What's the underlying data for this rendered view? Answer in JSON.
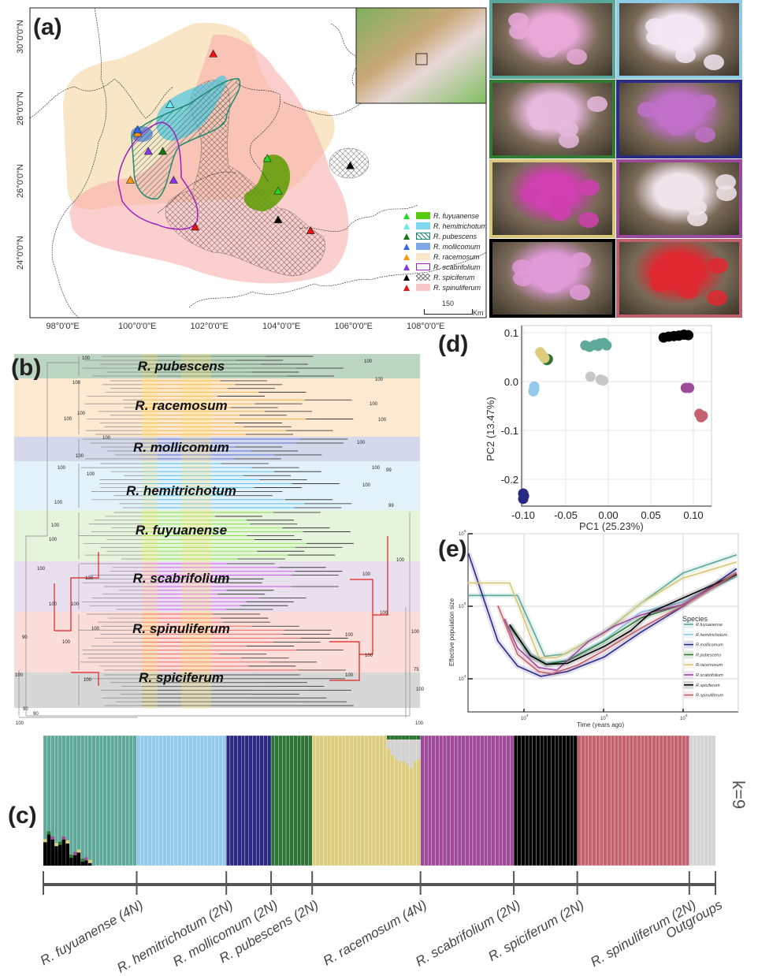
{
  "panels": {
    "a": "(a)",
    "b": "(b)",
    "c": "(c)",
    "d": "(d)",
    "e": "(e)"
  },
  "map": {
    "lon_ticks": [
      "98°0'0\"E",
      "100°0'0\"E",
      "102°0'0\"E",
      "104°0'0\"E",
      "106°0'0\"E",
      "108°0'0\"E"
    ],
    "lat_ticks": [
      "30°0'0\"N",
      "28°0'0\"N",
      "26°0'0\"N",
      "24°0'0\"N"
    ],
    "scale_value": "150",
    "scale_unit": "Km",
    "legend": [
      {
        "label": "R. fuyuanense",
        "marker": "#22dd22",
        "fill": "#55cc11",
        "style": "solid"
      },
      {
        "label": "R. hemitrichotum",
        "marker": "#66eeee",
        "fill": "#7fd8f0",
        "style": "solid"
      },
      {
        "label": "R. pubescens",
        "marker": "#117711",
        "fill": "#1d8a70",
        "style": "hatch"
      },
      {
        "label": "R. mollicomum",
        "marker": "#3366ee",
        "fill": "#7fa8e8",
        "style": "solid"
      },
      {
        "label": "R. racemosum",
        "marker": "#ff9911",
        "fill": "#f8e6c8",
        "style": "solid"
      },
      {
        "label": "R. scabrifolium",
        "marker": "#8833ee",
        "fill": "#a020c0",
        "style": "outline"
      },
      {
        "label": "R. spiciferum",
        "marker": "#000000",
        "fill": "#555555",
        "style": "crosshatch"
      },
      {
        "label": "R. spinuliferum",
        "marker": "#ee1111",
        "fill": "#fbc8c8",
        "style": "solid"
      }
    ],
    "sites": [
      {
        "lon": 102.2,
        "lat": 29.5,
        "color": "#ee1111"
      },
      {
        "lon": 101.0,
        "lat": 28.1,
        "color": "#66eeee"
      },
      {
        "lon": 100.1,
        "lat": 27.3,
        "color": "#ff9911"
      },
      {
        "lon": 100.1,
        "lat": 27.4,
        "color": "#3366ee"
      },
      {
        "lon": 99.9,
        "lat": 26.0,
        "color": "#ff9911"
      },
      {
        "lon": 100.4,
        "lat": 26.8,
        "color": "#8833ee"
      },
      {
        "lon": 100.8,
        "lat": 26.8,
        "color": "#117711"
      },
      {
        "lon": 101.1,
        "lat": 26.0,
        "color": "#8833ee"
      },
      {
        "lon": 101.7,
        "lat": 24.7,
        "color": "#ee1111"
      },
      {
        "lon": 103.7,
        "lat": 26.6,
        "color": "#22dd22"
      },
      {
        "lon": 104.0,
        "lat": 25.7,
        "color": "#22dd22"
      },
      {
        "lon": 104.0,
        "lat": 24.9,
        "color": "#000000"
      },
      {
        "lon": 104.9,
        "lat": 24.6,
        "color": "#ee1111"
      },
      {
        "lon": 106.0,
        "lat": 26.4,
        "color": "#000000"
      }
    ]
  },
  "photos": [
    {
      "border": "#5aa89a",
      "petal": "#e8a8d8"
    },
    {
      "border": "#8ecbe8",
      "petal": "#f2e6f2"
    },
    {
      "border": "#2e7d32",
      "petal": "#e6b8dc"
    },
    {
      "border": "#2a2a8a",
      "petal": "#c070c8"
    },
    {
      "border": "#d8c77a",
      "petal": "#d040b0"
    },
    {
      "border": "#9b4a9b",
      "petal": "#f0e4ea"
    },
    {
      "border": "#000000",
      "petal": "#e09ad8"
    },
    {
      "border": "#c0606a",
      "petal": "#e02830"
    }
  ],
  "tree": {
    "bands": [
      {
        "label": "R. pubescens",
        "color": "#8fb89a",
        "line": "#557755"
      },
      {
        "label": "R. racemosum",
        "color": "#fbd9b0",
        "line": "#f0a020"
      },
      {
        "label": "R. mollicomum",
        "color": "#b8bedc",
        "line": "#3355dd"
      },
      {
        "label": "R. hemitrichotum",
        "color": "#cfeaf8",
        "line": "#22aaee"
      },
      {
        "label": "R. fuyuanense",
        "color": "#d6ecc4",
        "line": "#66dd22"
      },
      {
        "label": "R. scabrifolium",
        "color": "#d8cce4",
        "line": "#cc33ee"
      },
      {
        "label": "R. spinuliferum",
        "color": "#f8c8c0",
        "line": "#ee3333"
      },
      {
        "label": "R. spiciferum",
        "color": "#bcbcbc",
        "line": "#333333"
      }
    ],
    "bootstrap": [
      "100",
      "100",
      "100",
      "100",
      "100",
      "100",
      "100",
      "100",
      "100",
      "100",
      "100",
      "100",
      "100",
      "99",
      "100",
      "100",
      "100",
      "99",
      "100",
      "100",
      "100",
      "100",
      "100",
      "100",
      "100",
      "100",
      "100",
      "100",
      "90",
      "100",
      "100",
      "100",
      "100",
      "100",
      "75",
      "100",
      "100",
      "100",
      "90",
      "90",
      "100",
      "100"
    ]
  },
  "structure": {
    "k_label": "k=9",
    "groups": [
      {
        "label": "R. fuyuanense (4N)",
        "n": 25,
        "color": "#5fa99b"
      },
      {
        "label": "R. hemitrichotum (2N)",
        "n": 24,
        "color": "#93c9ea"
      },
      {
        "label": "R. mollicomum (2N)",
        "n": 12,
        "color": "#2b2882"
      },
      {
        "label": "R. pubescens (2N)",
        "n": 11,
        "color": "#2e7434"
      },
      {
        "label": "R. racemosum (4N)",
        "n": 29,
        "color": "#dccd7e"
      },
      {
        "label": "R. scabrifolium (2N)",
        "n": 25,
        "color": "#9e4a98"
      },
      {
        "label": "R. spiciferum (2N)",
        "n": 17,
        "color": "#000000"
      },
      {
        "label": "R. spinuliferum (2N)",
        "n": 30,
        "color": "#c4636f"
      },
      {
        "label": "Outgroups",
        "n": 7,
        "color": "#d3d3d3"
      }
    ],
    "admixture": {
      "fuyuanense_black": [
        0.18,
        0.24,
        0.2,
        0.15,
        0.16,
        0.2,
        0.17,
        0.06,
        0.08,
        0.1,
        0.03,
        0.04,
        0.02
      ],
      "racemosum_grey_tail": [
        0.1,
        0.15,
        0.18,
        0.2,
        0.2,
        0.22,
        0.25,
        0.2,
        0.18
      ]
    }
  },
  "chart_data": [
    {
      "type": "scatter",
      "xlabel": "PC1 (25.23%)",
      "ylabel": "PC2 (13.47%)",
      "xlim": [
        -0.115,
        0.122
      ],
      "ylim": [
        -0.255,
        0.115
      ],
      "xticks": [
        "-0.10",
        "-0.05",
        "0.00",
        "0.05",
        "0.10"
      ],
      "xtick_values": [
        -0.1,
        -0.05,
        0,
        0.05,
        0.1
      ],
      "yticks": [
        "0.1",
        "0.0",
        "-0.1",
        "-0.2"
      ],
      "ytick_values": [
        0.1,
        0,
        -0.1,
        -0.2
      ],
      "grid": true,
      "series": [
        {
          "color": "#5fa99b",
          "points": [
            [
              -0.027,
              0.074
            ],
            [
              -0.022,
              0.071
            ],
            [
              -0.016,
              0.075
            ],
            [
              -0.01,
              0.078
            ],
            [
              -0.005,
              0.079
            ],
            [
              -0.002,
              0.074
            ],
            [
              -0.012,
              0.073
            ]
          ]
        },
        {
          "color": "#93c9ea",
          "points": [
            [
              -0.087,
              -0.01
            ],
            [
              -0.088,
              -0.02
            ],
            [
              -0.087,
              -0.015
            ]
          ]
        },
        {
          "color": "#2b2882",
          "points": [
            [
              -0.1,
              -0.229
            ],
            [
              -0.1,
              -0.24
            ],
            [
              -0.099,
              -0.234
            ]
          ]
        },
        {
          "color": "#2e7434",
          "points": [
            [
              -0.071,
              0.046
            ],
            [
              -0.072,
              0.044
            ]
          ]
        },
        {
          "color": "#dccd7e",
          "points": [
            [
              -0.08,
              0.06
            ],
            [
              -0.079,
              0.057
            ],
            [
              -0.077,
              0.053
            ],
            [
              -0.075,
              0.048
            ]
          ]
        },
        {
          "color": "#9e4a98",
          "points": [
            [
              0.091,
              -0.013
            ],
            [
              0.095,
              -0.013
            ]
          ]
        },
        {
          "color": "#000000",
          "points": [
            [
              0.065,
              0.09
            ],
            [
              0.071,
              0.092
            ],
            [
              0.077,
              0.093
            ],
            [
              0.083,
              0.094
            ],
            [
              0.089,
              0.096
            ],
            [
              0.094,
              0.095
            ]
          ]
        },
        {
          "color": "#c4636f",
          "points": [
            [
              0.107,
              -0.066
            ],
            [
              0.111,
              -0.07
            ],
            [
              0.109,
              -0.073
            ]
          ]
        },
        {
          "color": "#c8c8c8",
          "points": [
            [
              -0.021,
              0.01
            ],
            [
              -0.009,
              0.004
            ],
            [
              -0.006,
              0.002
            ]
          ]
        }
      ]
    },
    {
      "type": "line",
      "xlabel": "Time (years ago)",
      "ylabel": "Effective population size",
      "xscale": "log",
      "yscale": "log",
      "xlim": [
        2000,
        4900000
      ],
      "ylim": [
        3500,
        1050000
      ],
      "xtick_exponents": [
        "4",
        "5",
        "6"
      ],
      "ytick_exponents": [
        "6",
        "5",
        "4"
      ],
      "grid": true,
      "legend_title": "Species",
      "legend_position": "right",
      "series": [
        {
          "name": "R.fuyuanense",
          "color": "#5aa89a",
          "x": [
            1950,
            8300,
            18200,
            32400,
            102000,
            295000,
            1000000,
            4700000
          ],
          "y": [
            141000,
            141000,
            20400,
            21900,
            43600,
            110000,
            288000,
            513000
          ]
        },
        {
          "name": "R.hemitrichotum",
          "color": "#8ecbe8",
          "x": [
            6600,
            12000,
            19000,
            35000,
            102000,
            295000,
            1000000,
            4700000
          ],
          "y": [
            52000,
            22000,
            16200,
            18200,
            34000,
            83000,
            115000,
            257000
          ]
        },
        {
          "name": "R.mollicomum",
          "color": "#2a2a8a",
          "x": [
            2000,
            4700,
            8300,
            16300,
            35000,
            102000,
            295000,
            1000000,
            4700000
          ],
          "y": [
            537000,
            33000,
            15000,
            10800,
            12600,
            20000,
            44000,
            100000,
            330000
          ]
        },
        {
          "name": "R.pubescens",
          "color": "#2e7d32",
          "x": [
            6600,
            12000,
            19000,
            35000,
            102000,
            295000,
            1000000,
            4700000
          ],
          "y": [
            54000,
            21000,
            15800,
            17700,
            33000,
            69000,
            106000,
            275000
          ]
        },
        {
          "name": "R.racemosum",
          "color": "#d8c77a",
          "x": [
            1950,
            6600,
            15500,
            25800,
            102000,
            295000,
            1000000,
            4700000
          ],
          "y": [
            209000,
            209000,
            19500,
            19500,
            42700,
            110000,
            245000,
            407000
          ]
        },
        {
          "name": "R.scabrifolium",
          "color": "#9b4a9b",
          "x": [
            5700,
            8300,
            15200,
            25800,
            65000,
            141000,
            295000,
            1000000,
            4700000
          ],
          "y": [
            67000,
            26700,
            14300,
            13100,
            33000,
            54000,
            76000,
            106000,
            288000
          ]
        },
        {
          "name": "R.spiciferum",
          "color": "#000000",
          "x": [
            6600,
            12000,
            19000,
            35000,
            102000,
            219000,
            400000,
            1000000,
            4700000
          ],
          "y": [
            56000,
            21000,
            15800,
            16300,
            28000,
            46000,
            83000,
            130000,
            275000
          ]
        },
        {
          "name": "R.spinuliferum",
          "color": "#c0606a",
          "x": [
            4700,
            8300,
            15200,
            22400,
            47500,
            102000,
            295000,
            1000000,
            4700000
          ],
          "y": [
            102000,
            21800,
            12600,
            11700,
            15500,
            24500,
            50000,
            102000,
            288000
          ]
        }
      ]
    }
  ]
}
